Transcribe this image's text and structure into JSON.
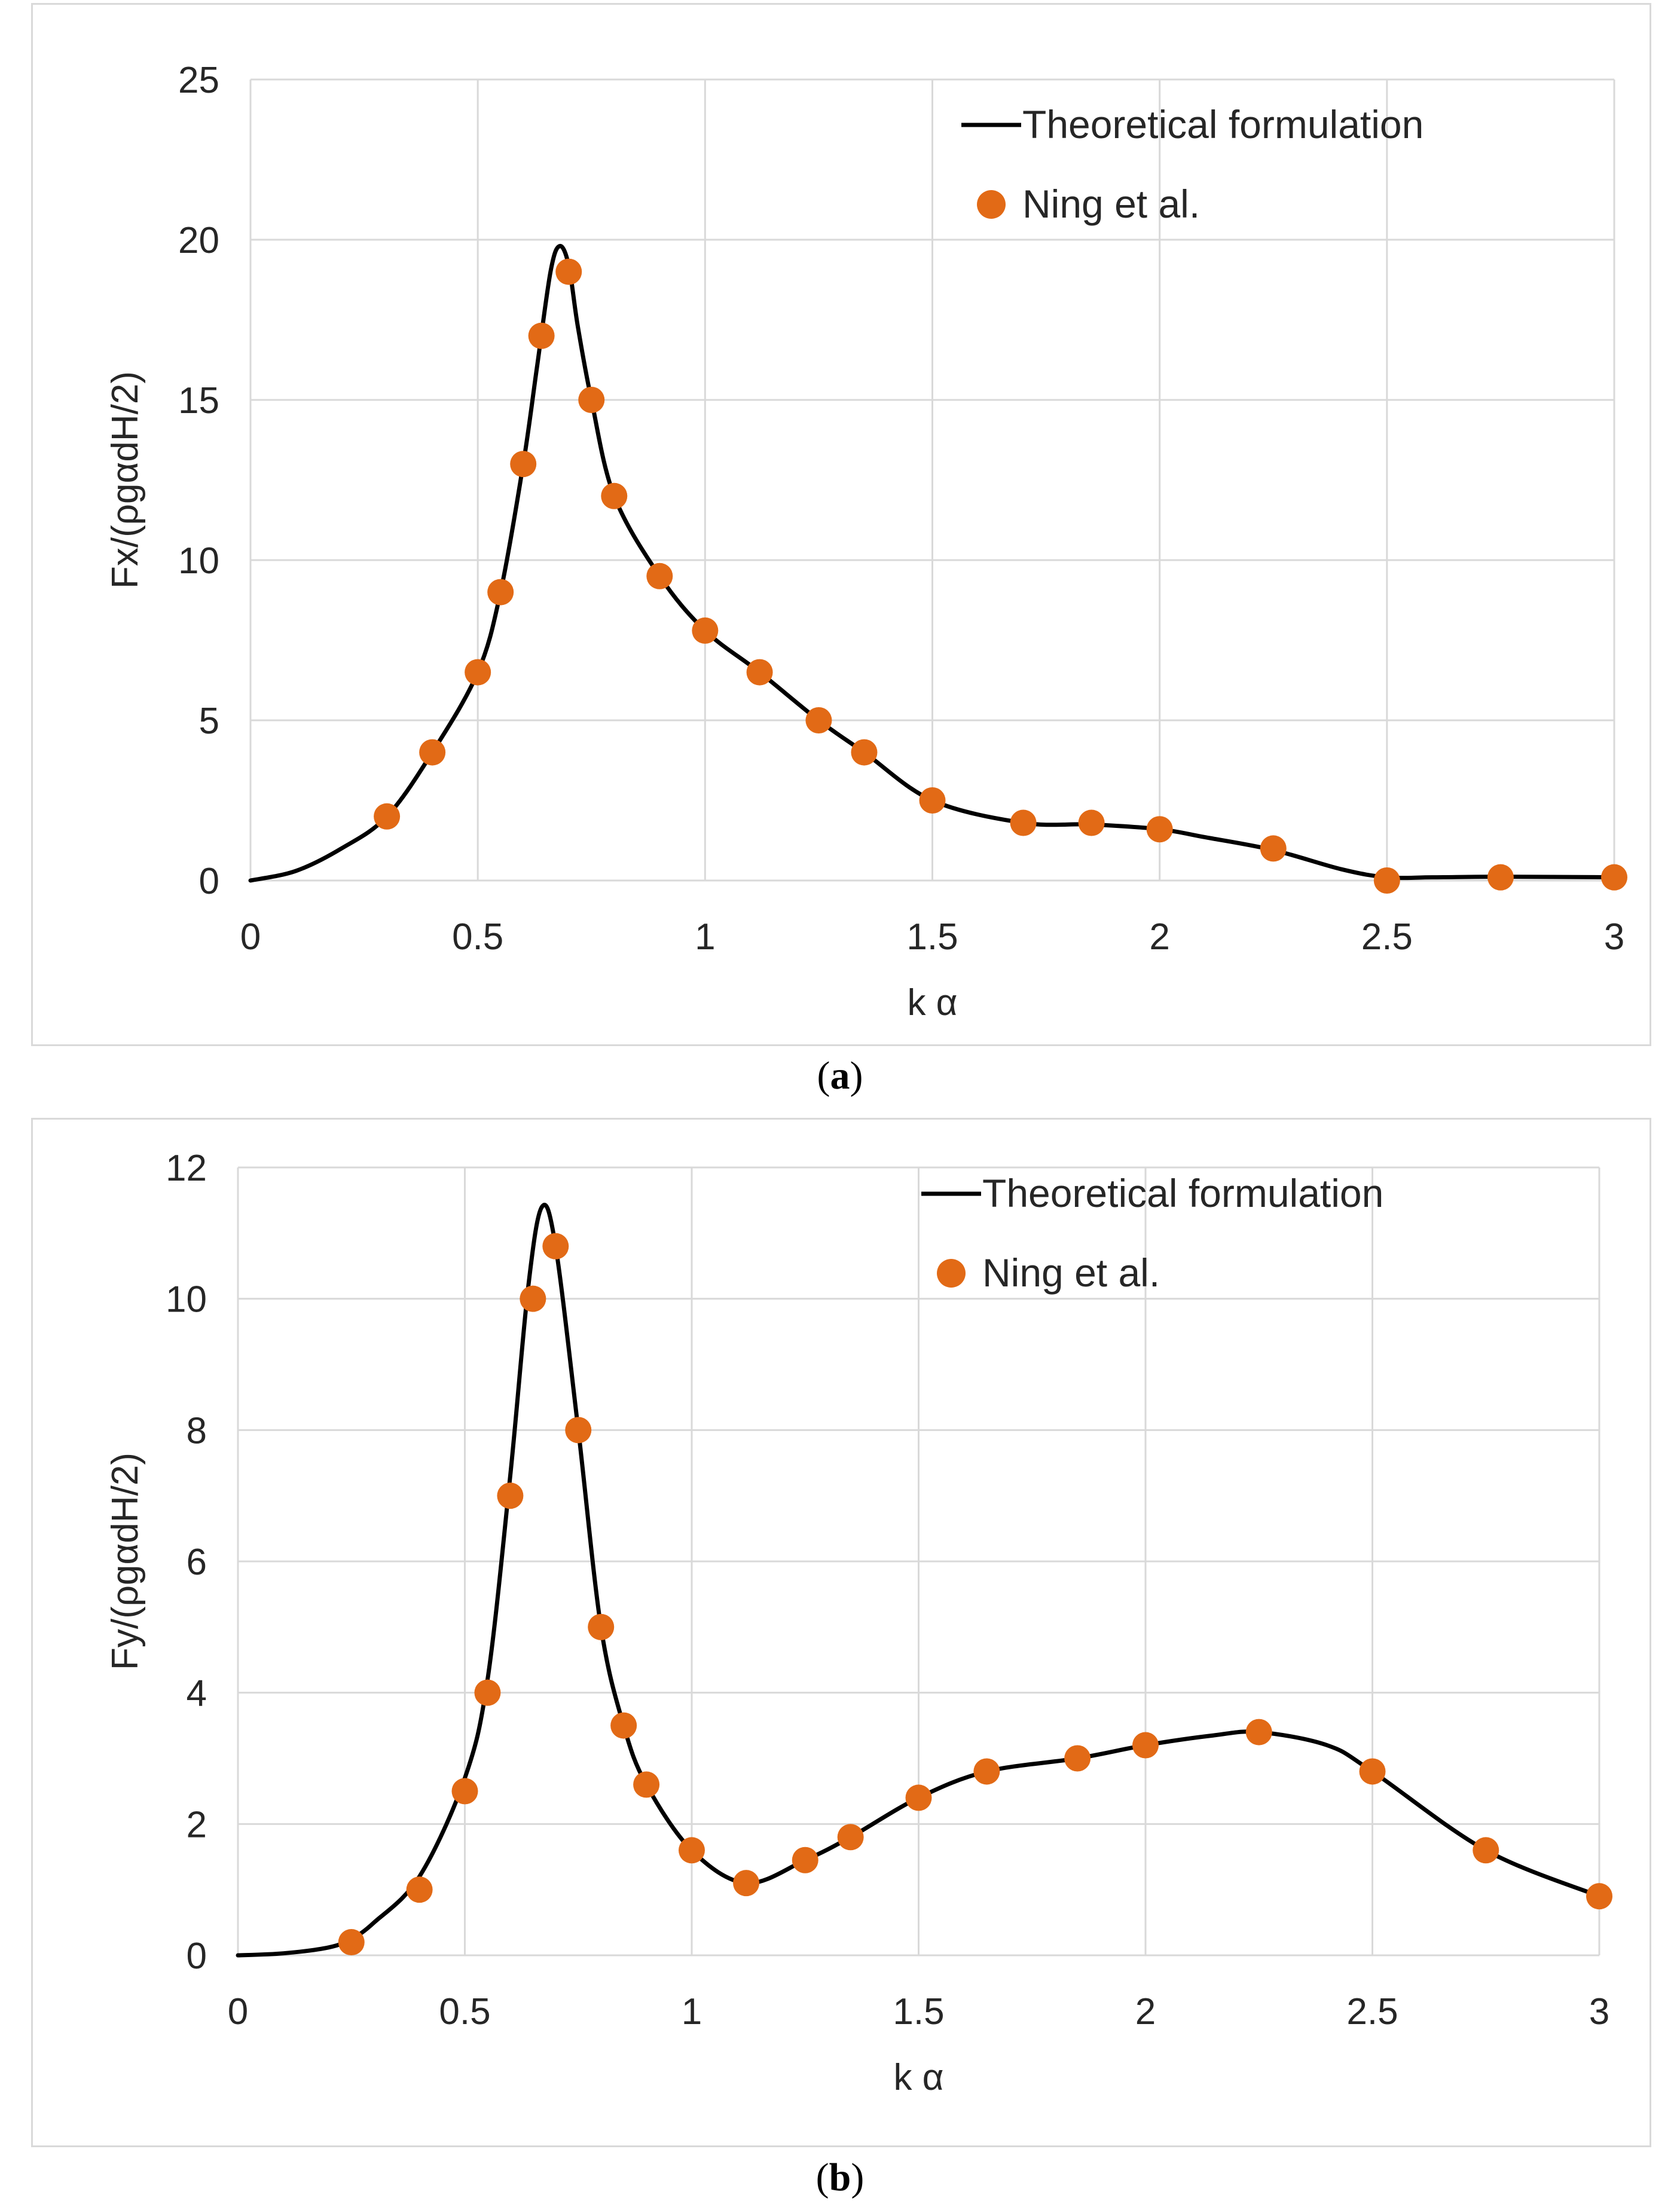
{
  "chart_data": [
    {
      "type": "scatter",
      "panel": "a",
      "caption": "a",
      "xlabel": "k α",
      "ylabel": "Fx/(ρgαdH/2)",
      "xlim": [
        0,
        3
      ],
      "ylim": [
        0,
        25
      ],
      "xticks": [
        "0",
        "0.5",
        "1",
        "1.5",
        "2",
        "2.5",
        "3"
      ],
      "yticks": [
        "0",
        "5",
        "10",
        "15",
        "20",
        "25"
      ],
      "grid": true,
      "legend_position": "top-right",
      "series": [
        {
          "name": "Theoretical formulation",
          "kind": "line",
          "color": "#000000",
          "x": [
            0,
            0.1,
            0.2,
            0.3,
            0.4,
            0.5,
            0.55,
            0.6,
            0.63,
            0.66,
            0.68,
            0.7,
            0.72,
            0.75,
            0.8,
            0.9,
            1.0,
            1.12,
            1.25,
            1.35,
            1.5,
            1.7,
            1.85,
            2.0,
            2.1,
            2.25,
            2.4,
            2.5,
            2.6,
            2.75,
            3.0
          ],
          "y": [
            0,
            0.3,
            1.0,
            2.0,
            4.0,
            6.5,
            9.0,
            13.0,
            16.0,
            19.0,
            19.8,
            19.2,
            17.3,
            15.0,
            12.0,
            9.5,
            7.8,
            6.5,
            5.0,
            4.0,
            2.5,
            1.8,
            1.75,
            1.6,
            1.35,
            0.95,
            0.35,
            0.1,
            0.1,
            0.12,
            0.1
          ]
        },
        {
          "name": "Ning et al.",
          "kind": "scatter",
          "color": "#E26A16",
          "x": [
            0.3,
            0.4,
            0.5,
            0.55,
            0.6,
            0.64,
            0.7,
            0.75,
            0.8,
            0.9,
            1.0,
            1.12,
            1.25,
            1.35,
            1.5,
            1.7,
            1.85,
            2.0,
            2.25,
            2.5,
            2.75,
            3.0
          ],
          "y": [
            2.0,
            4.0,
            6.5,
            9.0,
            13.0,
            17.0,
            19.0,
            15.0,
            12.0,
            9.5,
            7.8,
            6.5,
            5.0,
            4.0,
            2.5,
            1.8,
            1.8,
            1.6,
            1.0,
            0.0,
            0.1,
            0.1
          ]
        }
      ]
    },
    {
      "type": "scatter",
      "panel": "b",
      "caption": "b",
      "xlabel": "k α",
      "ylabel": "Fy/(ρgαdH/2)",
      "xlim": [
        0,
        3
      ],
      "ylim": [
        0,
        12
      ],
      "xticks": [
        "0",
        "0.5",
        "1",
        "1.5",
        "2",
        "2.5",
        "3"
      ],
      "yticks": [
        "0",
        "2",
        "4",
        "6",
        "8",
        "10",
        "12"
      ],
      "grid": true,
      "legend_position": "top-right",
      "series": [
        {
          "name": "Theoretical formulation",
          "kind": "line",
          "color": "#000000",
          "x": [
            0,
            0.1,
            0.2,
            0.25,
            0.3,
            0.4,
            0.5,
            0.55,
            0.6,
            0.64,
            0.67,
            0.7,
            0.75,
            0.8,
            0.85,
            0.9,
            1.0,
            1.12,
            1.25,
            1.35,
            1.5,
            1.65,
            1.85,
            2.0,
            2.15,
            2.25,
            2.4,
            2.5,
            2.75,
            3.0
          ],
          "y": [
            0,
            0.03,
            0.12,
            0.25,
            0.5,
            1.2,
            2.7,
            4.2,
            7.3,
            10.2,
            11.4,
            10.8,
            8.0,
            5.0,
            3.5,
            2.6,
            1.6,
            1.1,
            1.45,
            1.8,
            2.4,
            2.8,
            3.0,
            3.2,
            3.35,
            3.4,
            3.2,
            2.8,
            1.6,
            0.9
          ]
        },
        {
          "name": "Ning et al.",
          "kind": "scatter",
          "color": "#E26A16",
          "x": [
            0.25,
            0.4,
            0.5,
            0.55,
            0.6,
            0.65,
            0.7,
            0.75,
            0.8,
            0.85,
            0.9,
            1.0,
            1.12,
            1.25,
            1.35,
            1.5,
            1.65,
            1.85,
            2.0,
            2.25,
            2.5,
            2.75,
            3.0
          ],
          "y": [
            0.2,
            1.0,
            2.5,
            4.0,
            7.0,
            10.0,
            10.8,
            8.0,
            5.0,
            3.5,
            2.6,
            1.6,
            1.1,
            1.45,
            1.8,
            2.4,
            2.8,
            3.0,
            3.2,
            3.4,
            2.8,
            1.6,
            0.9
          ]
        }
      ]
    }
  ]
}
